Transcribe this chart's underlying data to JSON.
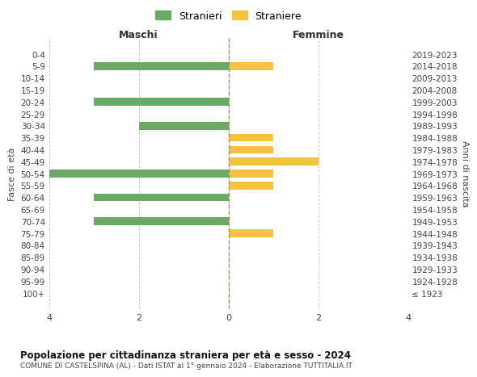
{
  "age_groups": [
    "100+",
    "95-99",
    "90-94",
    "85-89",
    "80-84",
    "75-79",
    "70-74",
    "65-69",
    "60-64",
    "55-59",
    "50-54",
    "45-49",
    "40-44",
    "35-39",
    "30-34",
    "25-29",
    "20-24",
    "15-19",
    "10-14",
    "5-9",
    "0-4"
  ],
  "birth_years": [
    "≤ 1923",
    "1924-1928",
    "1929-1933",
    "1934-1938",
    "1939-1943",
    "1944-1948",
    "1949-1953",
    "1954-1958",
    "1959-1963",
    "1964-1968",
    "1969-1973",
    "1974-1978",
    "1979-1983",
    "1984-1988",
    "1989-1993",
    "1994-1998",
    "1999-2003",
    "2004-2008",
    "2009-2013",
    "2014-2018",
    "2019-2023"
  ],
  "males": [
    0,
    0,
    0,
    0,
    0,
    0,
    3,
    0,
    3,
    0,
    4,
    0,
    0,
    0,
    2,
    0,
    3,
    0,
    0,
    3,
    0
  ],
  "females": [
    0,
    0,
    0,
    0,
    0,
    1,
    0,
    0,
    0,
    1,
    1,
    2,
    1,
    1,
    0,
    0,
    0,
    0,
    0,
    1,
    0
  ],
  "male_color": "#6aaa64",
  "female_color": "#f5c242",
  "xlim": 4,
  "title": "Popolazione per cittadinanza straniera per età e sesso - 2024",
  "subtitle": "COMUNE DI CASTELSPINA (AL) - Dati ISTAT al 1° gennaio 2024 - Elaborazione TUTTITALIA.IT",
  "xlabel_left": "Maschi",
  "xlabel_right": "Femmine",
  "ylabel_left": "Fasce di età",
  "ylabel_right": "Anni di nascita",
  "legend_stranieri": "Stranieri",
  "legend_straniere": "Straniere",
  "bg_color": "#ffffff",
  "grid_color": "#cccccc",
  "tick_color": "#888888"
}
